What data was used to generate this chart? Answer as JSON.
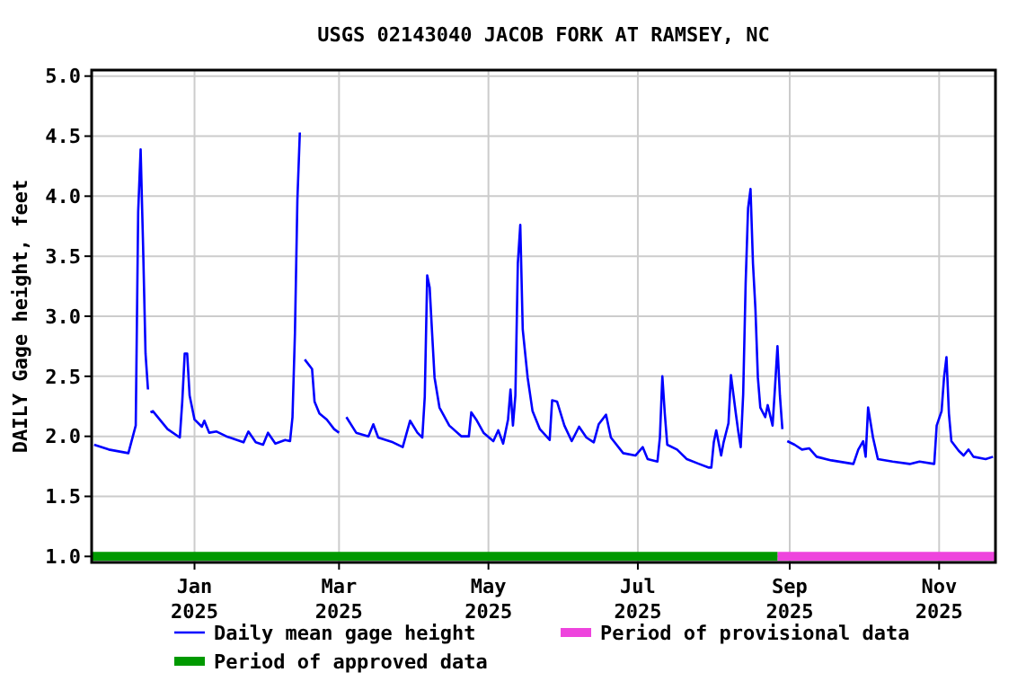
{
  "chart_data": {
    "type": "line",
    "title": "USGS 02143040 JACOB FORK AT RAMSEY, NC",
    "ylabel": "DAILY Gage height, feet",
    "xlim": [
      "2024-11-20",
      "2025-11-24"
    ],
    "ylim": [
      0.95,
      5.05
    ],
    "yticks": [
      {
        "value": 1,
        "label": "1.0"
      },
      {
        "value": 1.5,
        "label": "1.5"
      },
      {
        "value": 2,
        "label": "2.0"
      },
      {
        "value": 2.5,
        "label": "2.5"
      },
      {
        "value": 3,
        "label": "3.0"
      },
      {
        "value": 3.5,
        "label": "3.5"
      },
      {
        "value": 4,
        "label": "4.0"
      },
      {
        "value": 4.5,
        "label": "4.5"
      },
      {
        "value": 5,
        "label": "5.0"
      }
    ],
    "xticks": [
      {
        "value": "2025-01-01",
        "label": "Jan\n2025"
      },
      {
        "value": "2025-03-01",
        "label": "Mar\n2025"
      },
      {
        "value": "2025-05-01",
        "label": "May\n2025"
      },
      {
        "value": "2025-07-01",
        "label": "Jul\n2025"
      },
      {
        "value": "2025-09-01",
        "label": "Sep\n2025"
      },
      {
        "value": "2025-11-01",
        "label": "Nov\n2025"
      }
    ],
    "grid": true,
    "legend": "bottom",
    "line_style": "solid",
    "series": [
      {
        "name": "Daily mean gage height",
        "color": "#0000ff",
        "x": [
          "2024-11-21",
          "2024-11-27",
          "2024-12-05",
          "2024-12-08",
          "2024-12-09",
          "2024-12-10",
          "2024-12-11",
          "2024-12-12",
          "2024-12-13",
          "2024-12-13T18:00",
          "2024-12-14",
          "2024-12-15",
          "2024-12-21",
          "2024-12-26",
          "2024-12-27",
          "2024-12-28",
          "2024-12-29",
          "2024-12-30",
          "2025-01-01",
          "2025-01-04",
          "2025-01-05",
          "2025-01-07",
          "2025-01-10",
          "2025-01-14",
          "2025-01-21",
          "2025-01-23",
          "2025-01-26",
          "2025-01-29",
          "2025-01-31",
          "2025-02-03",
          "2025-02-07",
          "2025-02-09",
          "2025-02-10",
          "2025-02-11",
          "2025-02-12",
          "2025-02-13",
          "2025-02-14",
          "2025-02-15",
          "2025-02-18",
          "2025-02-19",
          "2025-02-21",
          "2025-02-24",
          "2025-02-27",
          "2025-03-01",
          "2025-03-02",
          "2025-03-04",
          "2025-03-08",
          "2025-03-13",
          "2025-03-15",
          "2025-03-17",
          "2025-03-23",
          "2025-03-27",
          "2025-03-30",
          "2025-04-02",
          "2025-04-04",
          "2025-04-05",
          "2025-04-06",
          "2025-04-07",
          "2025-04-08",
          "2025-04-09",
          "2025-04-11",
          "2025-04-15",
          "2025-04-20",
          "2025-04-23",
          "2025-04-24",
          "2025-04-26",
          "2025-04-29",
          "2025-05-03",
          "2025-05-05",
          "2025-05-07",
          "2025-05-09",
          "2025-05-10",
          "2025-05-11",
          "2025-05-12",
          "2025-05-13",
          "2025-05-14",
          "2025-05-15",
          "2025-05-17",
          "2025-05-19",
          "2025-05-22",
          "2025-05-26",
          "2025-05-27",
          "2025-05-29",
          "2025-06-01",
          "2025-06-04",
          "2025-06-07",
          "2025-06-10",
          "2025-06-13",
          "2025-06-15",
          "2025-06-18",
          "2025-06-20",
          "2025-06-25",
          "2025-06-30",
          "2025-07-03",
          "2025-07-05",
          "2025-07-09",
          "2025-07-10",
          "2025-07-11",
          "2025-07-12",
          "2025-07-13",
          "2025-07-17",
          "2025-07-21",
          "2025-07-26",
          "2025-07-30",
          "2025-07-31",
          "2025-08-01",
          "2025-08-02",
          "2025-08-04",
          "2025-08-05",
          "2025-08-07",
          "2025-08-08",
          "2025-08-10",
          "2025-08-11",
          "2025-08-12",
          "2025-08-13",
          "2025-08-14",
          "2025-08-15",
          "2025-08-16",
          "2025-08-17",
          "2025-08-18",
          "2025-08-19",
          "2025-08-20",
          "2025-08-22",
          "2025-08-23",
          "2025-08-25",
          "2025-08-26",
          "2025-08-27",
          "2025-08-28",
          "2025-08-29",
          "2025-08-30",
          "2025-08-31",
          "2025-09-03",
          "2025-09-06",
          "2025-09-09",
          "2025-09-12",
          "2025-09-18",
          "2025-09-27",
          "2025-09-29",
          "2025-10-01",
          "2025-10-02",
          "2025-10-03",
          "2025-10-05",
          "2025-10-07",
          "2025-10-13",
          "2025-10-20",
          "2025-10-24",
          "2025-10-30",
          "2025-10-31",
          "2025-11-02",
          "2025-11-03",
          "2025-11-04",
          "2025-11-05",
          "2025-11-06",
          "2025-11-09",
          "2025-11-11",
          "2025-11-13",
          "2025-11-15",
          "2025-11-20",
          "2025-11-23"
        ],
        "values": [
          1.93,
          1.89,
          1.86,
          2.09,
          3.87,
          4.39,
          3.59,
          2.69,
          2.39,
          null,
          2.2,
          2.21,
          2.06,
          1.99,
          2.29,
          2.69,
          2.69,
          2.34,
          2.14,
          2.08,
          2.13,
          2.03,
          2.04,
          2,
          1.95,
          2.04,
          1.95,
          1.93,
          2.03,
          1.94,
          1.97,
          1.96,
          2.16,
          2.86,
          3.97,
          4.53,
          null,
          2.64,
          2.56,
          2.29,
          2.19,
          2.14,
          2.06,
          2.03,
          null,
          2.16,
          2.03,
          2,
          2.1,
          1.99,
          1.95,
          1.91,
          2.13,
          2.03,
          1.99,
          2.33,
          3.34,
          3.24,
          2.86,
          2.49,
          2.24,
          2.09,
          2,
          2,
          2.2,
          2.14,
          2.03,
          1.96,
          2.05,
          1.94,
          2.14,
          2.39,
          2.09,
          2.34,
          3.44,
          3.76,
          2.89,
          2.49,
          2.21,
          2.06,
          1.97,
          2.3,
          2.29,
          2.09,
          1.96,
          2.08,
          1.99,
          1.95,
          2.1,
          2.18,
          1.99,
          1.86,
          1.84,
          1.91,
          1.81,
          1.79,
          1.99,
          2.5,
          2.19,
          1.93,
          1.89,
          1.81,
          1.77,
          1.74,
          1.74,
          1.95,
          2.05,
          1.84,
          1.95,
          2.11,
          2.51,
          2.19,
          2.04,
          1.91,
          2.35,
          3.27,
          3.9,
          4.06,
          3.44,
          3.06,
          2.49,
          2.24,
          2.16,
          2.26,
          2.09,
          2.41,
          2.75,
          2.34,
          2.06,
          null,
          1.96,
          1.93,
          1.89,
          1.9,
          1.83,
          1.8,
          1.77,
          1.89,
          1.96,
          1.83,
          2.24,
          1.99,
          1.81,
          1.79,
          1.77,
          1.79,
          1.77,
          2.09,
          2.21,
          2.49,
          2.66,
          2.19,
          1.96,
          1.88,
          1.84,
          1.89,
          1.83,
          1.81,
          1.83
        ]
      },
      {
        "name": "Period of provisional data",
        "color": "#ee44dd",
        "x": [
          "2025-08-27",
          "2025-11-24"
        ],
        "values": [
          1,
          1
        ]
      },
      {
        "name": "Period of approved data",
        "color": "#009900",
        "x": [
          "2024-11-20",
          "2025-08-27"
        ],
        "values": [
          1,
          1
        ]
      }
    ]
  }
}
